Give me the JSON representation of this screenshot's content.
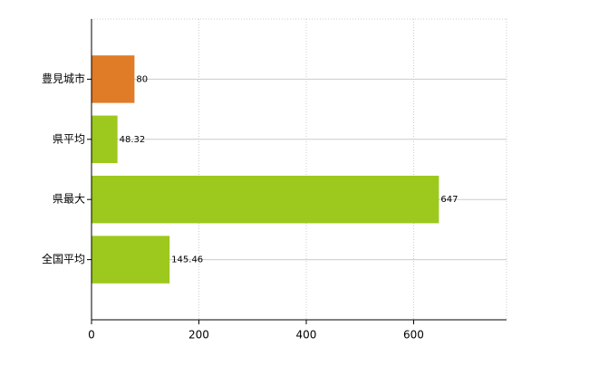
{
  "chart_data": {
    "type": "bar",
    "orientation": "horizontal",
    "categories": [
      "豊見城市",
      "県平均",
      "県最大",
      "全国平均"
    ],
    "values": [
      80,
      48.32,
      647,
      145.46
    ],
    "colors": [
      "#e07b28",
      "#9dc81e",
      "#9dc81e",
      "#9dc81e"
    ],
    "xlim": [
      0,
      773
    ],
    "xticks": [
      0,
      200,
      400,
      600
    ],
    "grid": true
  }
}
